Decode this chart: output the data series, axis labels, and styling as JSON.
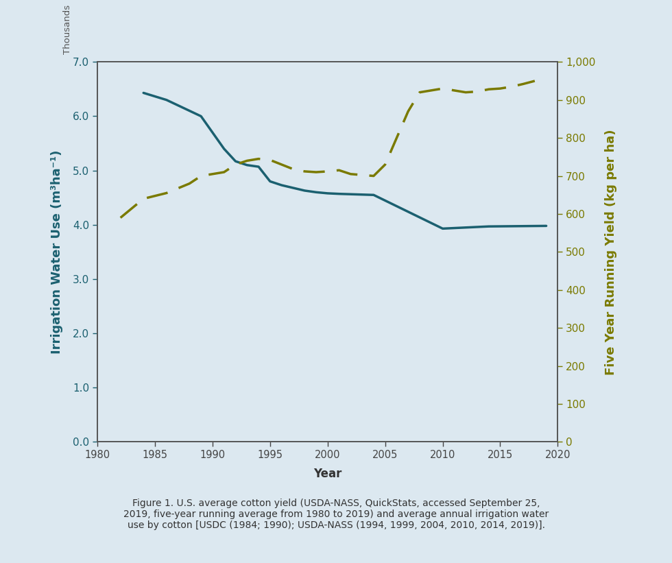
{
  "background_color": "#dce8f0",
  "plot_bg_color": "#dce8f0",
  "left_line_color": "#1b6070",
  "right_line_color": "#7a7a00",
  "left_ylabel": "Irrigation Water Use (m³ha⁻¹)",
  "left_ylabel_color": "#1b6070",
  "right_ylabel": "Five Year Running Yield (kg per ha)",
  "right_ylabel_color": "#7a7a00",
  "xlabel": "Year",
  "thousands_label": "Thousands",
  "caption": "Figure 1. U.S. average cotton yield (USDA-NASS, QuickStats, accessed September 25,\n2019, five-year running average from 1980 to 2019) and average annual irrigation water\nuse by cotton [USDC (1984; 1990); USDA-NASS (1994, 1999, 2004, 2010, 2014, 2019)].",
  "xlim": [
    1980,
    2020
  ],
  "ylim_left": [
    0.0,
    7.0
  ],
  "ylim_right": [
    0,
    1000
  ],
  "xticks": [
    1980,
    1985,
    1990,
    1995,
    2000,
    2005,
    2010,
    2015,
    2020
  ],
  "yticks_left": [
    0.0,
    1.0,
    2.0,
    3.0,
    4.0,
    5.0,
    6.0,
    7.0
  ],
  "yticks_right": [
    0,
    100,
    200,
    300,
    400,
    500,
    600,
    700,
    800,
    900,
    1000
  ],
  "water_use_x": [
    1984,
    1986,
    1988,
    1989,
    1990,
    1991,
    1992,
    1993,
    1994,
    1995,
    1996,
    1997,
    1998,
    1999,
    2000,
    2001,
    2004,
    2010,
    2014,
    2019
  ],
  "water_use_y": [
    6.43,
    6.3,
    6.1,
    6.0,
    5.7,
    5.4,
    5.17,
    5.1,
    5.07,
    4.8,
    4.73,
    4.68,
    4.63,
    4.6,
    4.58,
    4.57,
    4.55,
    3.93,
    3.97,
    3.98
  ],
  "yield_x": [
    1982,
    1984,
    1986,
    1988,
    1989,
    1991,
    1992,
    1993,
    1994,
    1995,
    1997,
    1998,
    1999,
    2000,
    2001,
    2002,
    2004,
    2005,
    2006,
    2007,
    2008,
    2009,
    2010,
    2011,
    2012,
    2013,
    2014,
    2015,
    2016,
    2017,
    2018
  ],
  "yield_y": [
    590,
    640,
    655,
    680,
    700,
    710,
    730,
    740,
    745,
    742,
    718,
    712,
    710,
    712,
    715,
    705,
    700,
    730,
    800,
    870,
    920,
    925,
    930,
    925,
    920,
    922,
    928,
    930,
    935,
    942,
    950
  ]
}
